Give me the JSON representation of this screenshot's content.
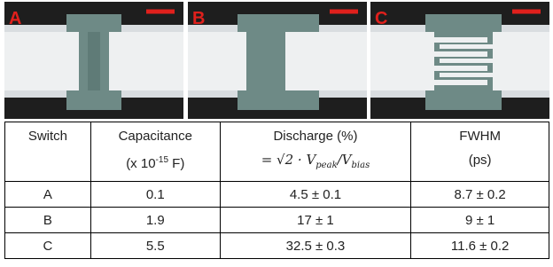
{
  "panels": [
    {
      "label": "A"
    },
    {
      "label": "B"
    },
    {
      "label": "C"
    }
  ],
  "table": {
    "header": {
      "switch": "Switch",
      "capacitance": {
        "line1": "Capacitance",
        "line2_pre": "(x 10",
        "line2_exp": "-15",
        "line2_post": " F)"
      },
      "discharge": {
        "line1": "Discharge (%)",
        "line2_pre": "= √2 · V",
        "sub1": "peak",
        "mid": "/V",
        "sub2": "bias"
      },
      "fwhm": {
        "line1": "FWHM",
        "line2": "(ps)"
      }
    },
    "rows": [
      [
        "A",
        "0.1",
        "4.5 ± 0.1",
        "8.7 ± 0.2"
      ],
      [
        "B",
        "1.9",
        "17 ± 1",
        "9 ± 1"
      ],
      [
        "C",
        "5.5",
        "32.5 ± 0.3",
        "11.6 ± 0.2"
      ]
    ]
  }
}
